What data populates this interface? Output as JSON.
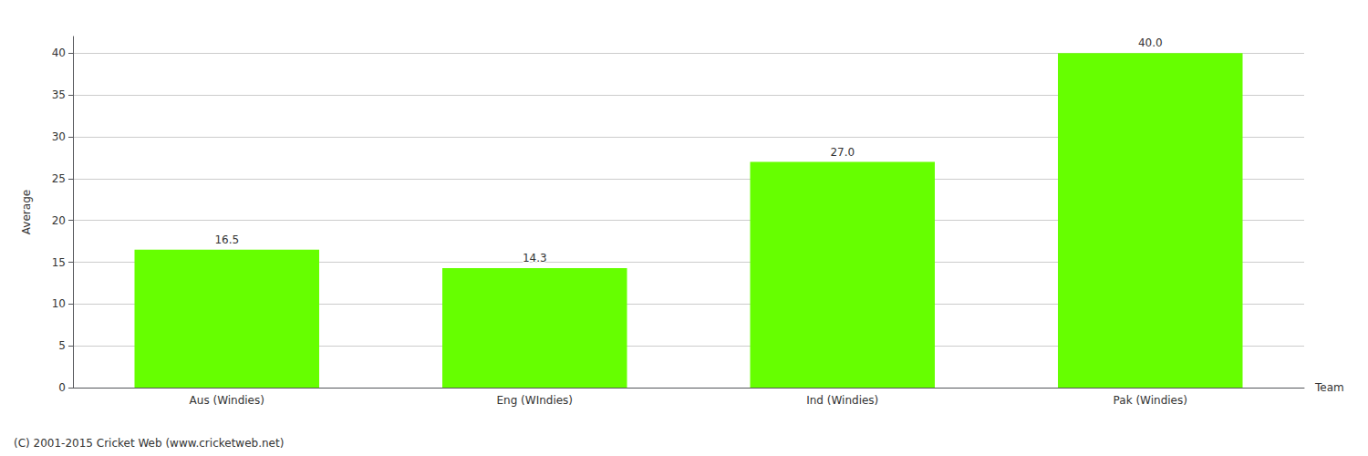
{
  "chart_data": {
    "type": "bar",
    "categories": [
      "Aus (Windies)",
      "Eng (WIndies)",
      "Ind (Windies)",
      "Pak (Windies)"
    ],
    "values": [
      16.5,
      14.3,
      27.0,
      40.0
    ],
    "value_labels": [
      "16.5",
      "14.3",
      "27.0",
      "40.0"
    ],
    "data_labels": true,
    "color": "#66ff00",
    "xlabel": "Team",
    "ylabel": "Average",
    "ylim": [
      0,
      42
    ],
    "yticks": [
      0,
      5,
      10,
      15,
      20,
      25,
      30,
      35,
      40
    ],
    "grid": true,
    "annotations": [
      "(C) 2001-2015 Cricket Web (www.cricketweb.net)"
    ]
  }
}
